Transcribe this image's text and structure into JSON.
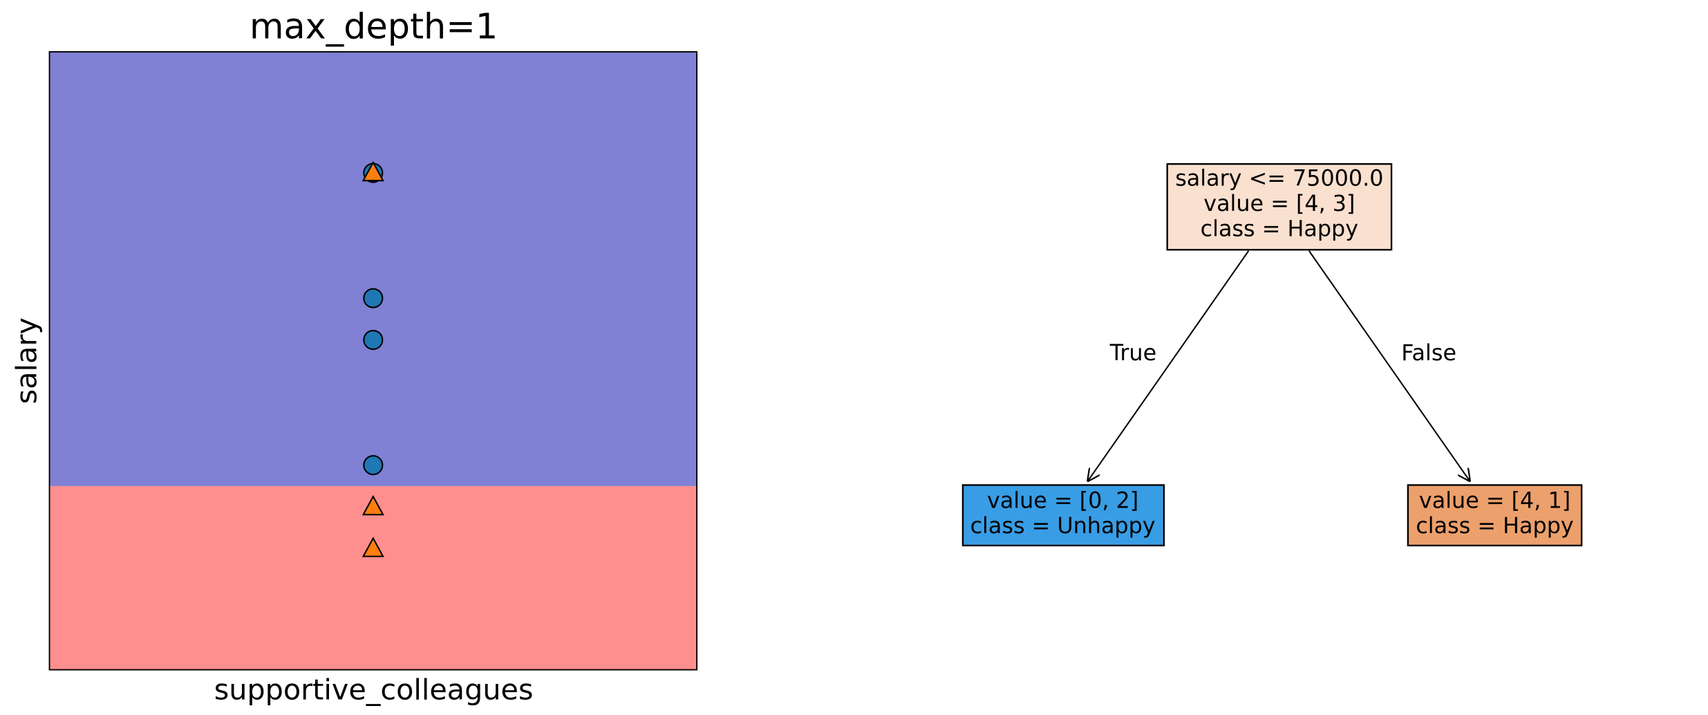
{
  "chart_data": {
    "type": "scatter",
    "title": "max_depth=1",
    "xlabel": "supportive_colleagues",
    "ylabel": "salary",
    "xlim": [
      0,
      2
    ],
    "ylim": [
      31000,
      179000
    ],
    "boundary": 75000,
    "region_colors": [
      "#ff8f8f",
      "#8080d4"
    ],
    "series": [
      {
        "marker": "circle",
        "color": "#1f77b4",
        "x": [
          1,
          1,
          1,
          1
        ],
        "values": [
          150000,
          120000,
          110000,
          80000
        ]
      },
      {
        "marker": "triangle",
        "color": "#ff7f0e",
        "x": [
          1,
          1,
          1
        ],
        "values": [
          150000,
          70000,
          60000
        ]
      }
    ]
  },
  "tree": {
    "nodes": [
      {
        "lines": [
          "salary <= 75000.0",
          "value = [4, 3]",
          "class = Happy"
        ],
        "color": "#f9e0cf"
      },
      {
        "lines": [
          "value = [0, 2]",
          "class = Unhappy"
        ],
        "color": "#399de5"
      },
      {
        "lines": [
          "value = [4, 1]",
          "class = Happy"
        ],
        "color": "#eca06c"
      }
    ],
    "edges": [
      {
        "label": "True"
      },
      {
        "label": "False"
      }
    ]
  }
}
